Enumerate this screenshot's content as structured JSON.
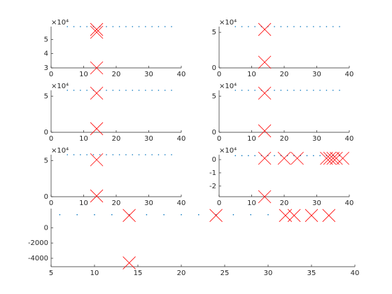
{
  "chart_data": [
    {
      "type": "scatter",
      "exponent_label": "×10⁴",
      "xlim": [
        0,
        40
      ],
      "xticks": [
        0,
        10,
        20,
        30,
        40
      ],
      "ylim": [
        3,
        5.9
      ],
      "yticks": [
        3,
        4,
        5
      ],
      "series": [
        {
          "color": "#0072bd",
          "marker": "dot",
          "x": [
            5,
            7,
            9,
            11,
            13,
            15,
            17,
            19,
            21,
            23,
            25,
            27,
            29,
            31,
            33,
            35,
            37
          ],
          "values": [
            5.9,
            5.9,
            5.9,
            5.9,
            5.9,
            5.9,
            5.9,
            5.9,
            5.9,
            5.9,
            5.9,
            5.9,
            5.9,
            5.9,
            5.9,
            5.9,
            5.9
          ]
        },
        {
          "color": "#ff0000",
          "marker": "x",
          "x": [
            14,
            14,
            14
          ],
          "values": [
            5.5,
            5.7,
            3.0
          ]
        }
      ]
    },
    {
      "type": "scatter",
      "exponent_label": "×10⁴",
      "xlim": [
        0,
        40
      ],
      "xticks": [
        0,
        10,
        20,
        30,
        40
      ],
      "ylim": [
        0,
        5.8
      ],
      "yticks": [
        0,
        5
      ],
      "series": [
        {
          "color": "#0072bd",
          "marker": "dot",
          "x": [
            5,
            7,
            9,
            11,
            13,
            15,
            17,
            19,
            21,
            23,
            25,
            27,
            29,
            31,
            33,
            35,
            37
          ],
          "values": [
            5.8,
            5.8,
            5.8,
            5.8,
            5.8,
            5.8,
            5.8,
            5.8,
            5.8,
            5.8,
            5.8,
            5.8,
            5.8,
            5.8,
            5.8,
            5.8,
            5.8
          ]
        },
        {
          "color": "#ff0000",
          "marker": "x",
          "x": [
            14,
            14
          ],
          "values": [
            5.4,
            0.8
          ]
        }
      ]
    },
    {
      "type": "scatter",
      "exponent_label": "×10⁴",
      "xlim": [
        0,
        40
      ],
      "xticks": [
        0,
        10,
        20,
        30,
        40
      ],
      "ylim": [
        0,
        5.8
      ],
      "yticks": [
        0,
        5
      ],
      "series": [
        {
          "color": "#0072bd",
          "marker": "dot",
          "x": [
            5,
            7,
            9,
            11,
            13,
            15,
            17,
            19,
            21,
            23,
            25,
            27,
            29,
            31,
            33,
            35,
            37
          ],
          "values": [
            5.8,
            5.8,
            5.8,
            5.8,
            5.8,
            5.8,
            5.8,
            5.8,
            5.8,
            5.8,
            5.8,
            5.8,
            5.8,
            5.8,
            5.8,
            5.8,
            5.8
          ]
        },
        {
          "color": "#ff0000",
          "marker": "x",
          "x": [
            14,
            14
          ],
          "values": [
            5.4,
            0.5
          ]
        }
      ]
    },
    {
      "type": "scatter",
      "exponent_label": "×10⁴",
      "xlim": [
        0,
        40
      ],
      "xticks": [
        0,
        10,
        20,
        30,
        40
      ],
      "ylim": [
        0,
        5.8
      ],
      "yticks": [
        0,
        5
      ],
      "series": [
        {
          "color": "#0072bd",
          "marker": "dot",
          "x": [
            5,
            7,
            9,
            11,
            13,
            15,
            17,
            19,
            21,
            23,
            25,
            27,
            29,
            31,
            33,
            35,
            37
          ],
          "values": [
            5.8,
            5.8,
            5.8,
            5.8,
            5.8,
            5.8,
            5.8,
            5.8,
            5.8,
            5.8,
            5.8,
            5.8,
            5.8,
            5.8,
            5.8,
            5.8,
            5.8
          ]
        },
        {
          "color": "#ff0000",
          "marker": "x",
          "x": [
            14,
            14
          ],
          "values": [
            5.4,
            0.2
          ]
        }
      ]
    },
    {
      "type": "scatter",
      "exponent_label": "×10⁴",
      "xlim": [
        0,
        40
      ],
      "xticks": [
        0,
        10,
        20,
        30,
        40
      ],
      "ylim": [
        0,
        5.8
      ],
      "yticks": [
        0,
        5
      ],
      "series": [
        {
          "color": "#0072bd",
          "marker": "dot",
          "x": [
            5,
            7,
            9,
            11,
            13,
            15,
            17,
            19,
            21,
            23,
            25,
            27,
            29,
            31,
            33,
            35,
            37
          ],
          "values": [
            5.8,
            5.8,
            5.8,
            5.8,
            5.8,
            5.8,
            5.8,
            5.8,
            5.8,
            5.8,
            5.8,
            5.8,
            5.8,
            5.8,
            5.8,
            5.8,
            5.8
          ]
        },
        {
          "color": "#ff0000",
          "marker": "x",
          "x": [
            14,
            14
          ],
          "values": [
            5.1,
            0.1
          ]
        }
      ]
    },
    {
      "type": "scatter",
      "exponent_label": "×10⁴",
      "xlim": [
        0,
        40
      ],
      "xticks": [
        0,
        10,
        20,
        30,
        40
      ],
      "ylim": [
        -2.8,
        0.37
      ],
      "yticks": [
        -2,
        -1,
        0
      ],
      "series": [
        {
          "color": "#0072bd",
          "marker": "dot",
          "x": [
            5,
            7,
            9,
            11,
            13,
            15,
            17,
            19,
            21,
            23,
            25,
            27,
            29,
            31,
            33,
            35,
            37
          ],
          "values": [
            0.3,
            0.3,
            0.3,
            0.3,
            0.3,
            0.3,
            0.3,
            0.3,
            0.3,
            0.3,
            0.3,
            0.3,
            0.3,
            0.3,
            0.3,
            0.3,
            0.3
          ]
        },
        {
          "color": "#ff0000",
          "marker": "x",
          "x": [
            14,
            20,
            24,
            33,
            34,
            35,
            36,
            38,
            14
          ],
          "values": [
            0.1,
            0.1,
            0.1,
            0.1,
            0.1,
            0.1,
            0.1,
            0.1,
            -2.8
          ]
        }
      ]
    },
    {
      "type": "scatter",
      "xlim": [
        5,
        40
      ],
      "xticks": [
        5,
        10,
        15,
        20,
        25,
        30,
        35,
        40
      ],
      "ylim": [
        -5100,
        2500
      ],
      "yticks": [
        -4000,
        -2000,
        0
      ],
      "series": [
        {
          "color": "#0072bd",
          "marker": "dot",
          "x": [
            6,
            8,
            10,
            12,
            14,
            16,
            18,
            20,
            22,
            24,
            26,
            28,
            30
          ],
          "values": [
            1700,
            1700,
            1700,
            1700,
            1700,
            1700,
            1700,
            1700,
            1700,
            1700,
            1700,
            1700,
            1700
          ]
        },
        {
          "color": "#ff0000",
          "marker": "x",
          "x": [
            14,
            24,
            32,
            33,
            35,
            37,
            14
          ],
          "values": [
            1600,
            1600,
            1600,
            1600,
            1600,
            1600,
            -4600
          ]
        }
      ]
    }
  ]
}
